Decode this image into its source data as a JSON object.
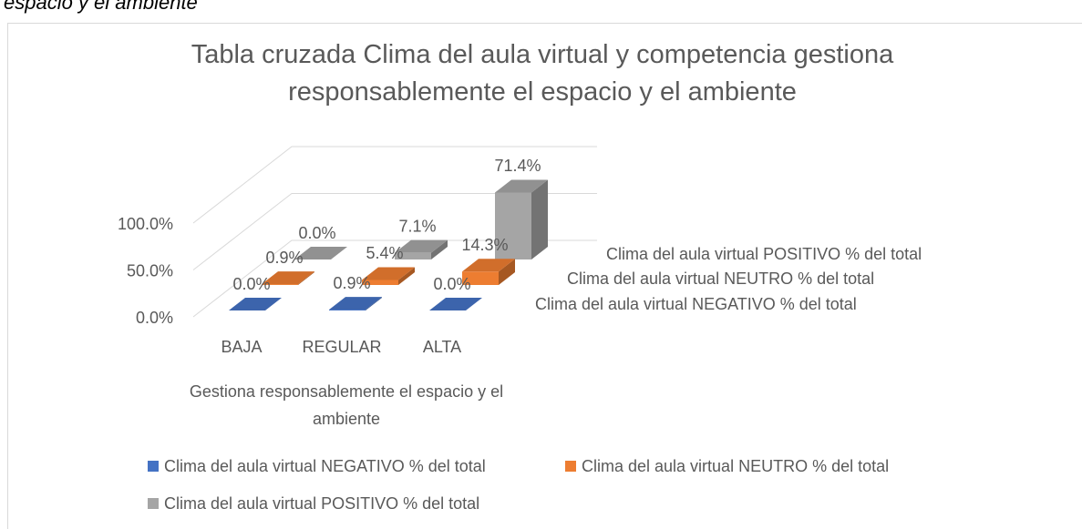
{
  "caption": "espacio y el ambiente",
  "chart_data": {
    "type": "bar3d",
    "title": "Tabla cruzada Clima del aula virtual y competencia gestiona responsablemente el espacio y el ambiente",
    "x_label": "Gestiona responsablemente el espacio y el ambiente",
    "categories": [
      "BAJA",
      "REGULAR",
      "ALTA"
    ],
    "series": [
      {
        "name": "Clima del aula virtual NEGATIVO % del total",
        "color": "#4472c4",
        "values": [
          0.0,
          0.9,
          0.0
        ],
        "value_labels": [
          "0.0%",
          "0.9%",
          "0.0%"
        ]
      },
      {
        "name": "Clima del aula virtual NEUTRO % del total",
        "color": "#ed7d31",
        "values": [
          0.9,
          5.4,
          14.3
        ],
        "value_labels": [
          "0.9%",
          "5.4%",
          "14.3%"
        ]
      },
      {
        "name": "Clima del aula virtual POSITIVO % del total",
        "color": "#a5a5a5",
        "values": [
          0.0,
          7.1,
          71.4
        ],
        "value_labels": [
          "0.0%",
          "7.1%",
          "71.4%"
        ]
      }
    ],
    "ylim": [
      0,
      100
    ],
    "yticks": [
      {
        "value": 0,
        "label": "0.0%"
      },
      {
        "value": 50,
        "label": "50.0%"
      },
      {
        "value": 100,
        "label": "100.0%"
      }
    ],
    "grid": true,
    "legend": "bottom"
  }
}
